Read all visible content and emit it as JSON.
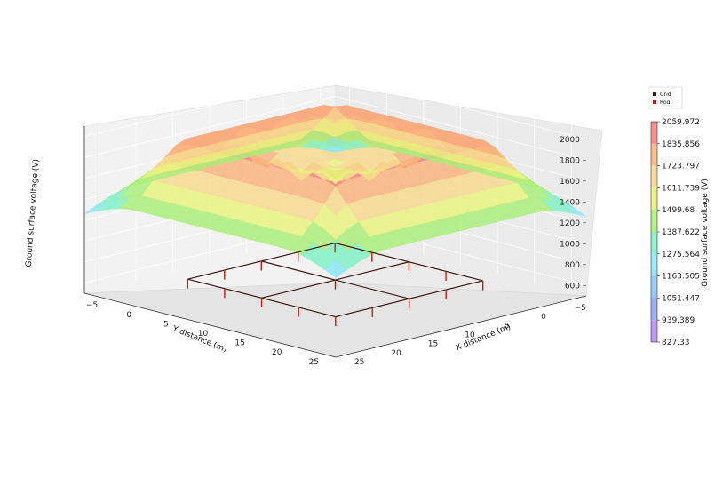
{
  "chart_data": {
    "type": "surface3d",
    "title": "",
    "xlabel": "X distance (m)",
    "ylabel": "Y distance (m)",
    "zlabel": "Ground surface voltage (V)",
    "colorbar_label": "Ground surface voltage (V)",
    "x_ticks": [
      "−5",
      "0",
      "5",
      "10",
      "15",
      "20",
      "25"
    ],
    "y_ticks": [
      "−5",
      "0",
      "5",
      "10",
      "15",
      "20",
      "25"
    ],
    "z_ticks": [
      "600",
      "800",
      "1000",
      "1200",
      "1400",
      "1600",
      "1800",
      "2000"
    ],
    "xlim": [
      -7,
      27
    ],
    "ylim": [
      -7,
      27
    ],
    "zlim": [
      500,
      2100
    ],
    "colorbar_ticks": [
      "2059.972",
      "1835.856",
      "1723.797",
      "1611.739",
      "1499.68",
      "1387.622",
      "1275.564",
      "1163.505",
      "1051.447",
      "939.389",
      "827.33"
    ],
    "colorbar_colors": [
      "#f77a7a",
      "#f9b27c",
      "#f7d98e",
      "#e8f27c",
      "#a8ee77",
      "#7ff0c4",
      "#86e6f5",
      "#86c2f5",
      "#8aa0f5",
      "#b388f5"
    ],
    "legend": [
      {
        "label": "Grid",
        "color": "#3a1c12"
      },
      {
        "label": "Rod",
        "color": "#c0200f"
      }
    ],
    "grid_extent": {
      "x": [
        0,
        20
      ],
      "y": [
        0,
        20
      ]
    },
    "grid_lines": [
      0,
      10,
      20
    ],
    "rod_positions": [
      [
        0,
        0
      ],
      [
        0,
        5
      ],
      [
        0,
        10
      ],
      [
        0,
        15
      ],
      [
        0,
        20
      ],
      [
        5,
        0
      ],
      [
        10,
        0
      ],
      [
        15,
        0
      ],
      [
        20,
        0
      ],
      [
        20,
        5
      ],
      [
        20,
        10
      ],
      [
        20,
        15
      ],
      [
        20,
        20
      ],
      [
        5,
        20
      ],
      [
        10,
        20
      ],
      [
        15,
        20
      ],
      [
        10,
        10
      ]
    ],
    "peak_voltage": 2059.972,
    "min_voltage": 827.33
  }
}
